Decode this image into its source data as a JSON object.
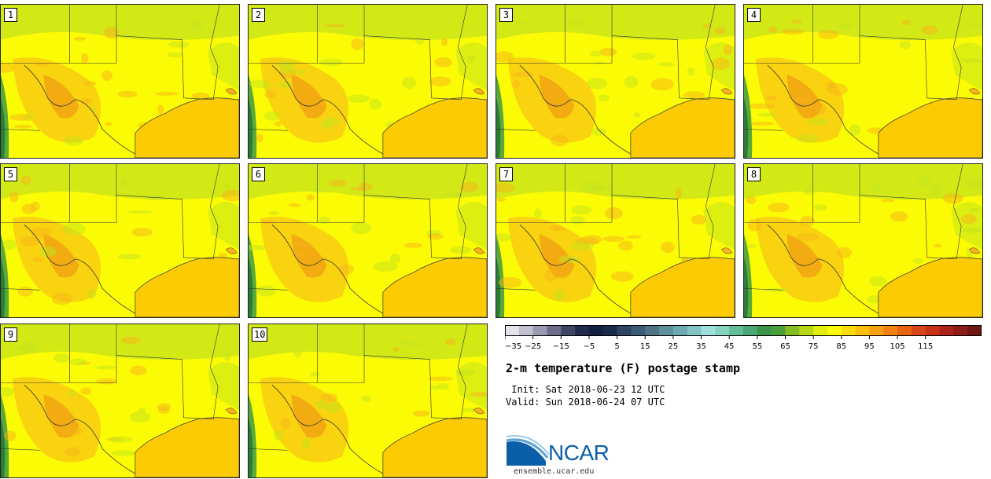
{
  "members": [
    "1",
    "2",
    "3",
    "4",
    "5",
    "6",
    "7",
    "8",
    "9",
    "10"
  ],
  "colors": {
    "gulf": "#fdcb04",
    "base_yellow": "#fbfb05",
    "warm_orange": "#f7b318",
    "hot_orange": "#ef8a16",
    "cool_green": "#c4e31c",
    "mountain_green": "#5aa93a",
    "dark_green": "#2b7d35",
    "border": "#222222"
  },
  "colorbar": {
    "colors": [
      "#e3e3ea",
      "#c0c0d0",
      "#9a9ab0",
      "#6c6e89",
      "#3e4666",
      "#1e2a4e",
      "#12203f",
      "#1a2c4e",
      "#2d4462",
      "#3d5a76",
      "#4f7488",
      "#5f8e9c",
      "#6ca9b0",
      "#84c3c3",
      "#9de0dc",
      "#86d3c0",
      "#64bc98",
      "#4aa775",
      "#3a9447",
      "#4ba03a",
      "#86bd22",
      "#b6d812",
      "#e2ee0a",
      "#fbfb05",
      "#fbdc0b",
      "#f9bd0a",
      "#f6a014",
      "#f38212",
      "#e9620e",
      "#d9451a",
      "#c53216",
      "#a9231a",
      "#8e1c19",
      "#6f1612"
    ],
    "tick_labels": [
      "−35",
      "−25",
      "−15",
      "−5",
      "5",
      "15",
      "25",
      "35",
      "45",
      "55",
      "65",
      "75",
      "85",
      "95",
      "105",
      "115"
    ]
  },
  "title": "2-m temperature (F) postage stamp",
  "init_text": " Init: Sat 2018-06-23 12 UTC",
  "valid_text": "Valid: Sun 2018-06-24 07 UTC",
  "logo_text": "NCAR",
  "website": "ensemble.ucar.edu"
}
